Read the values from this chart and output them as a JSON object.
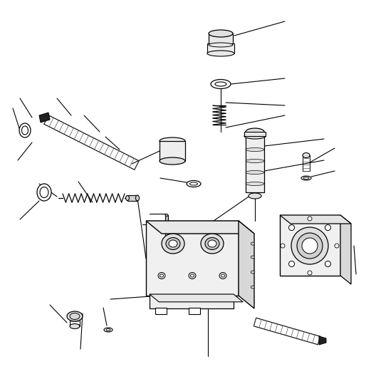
{
  "background_color": "#ffffff",
  "line_color": "#000000",
  "line_width": 0.8,
  "fig_width": 5.21,
  "fig_height": 5.18,
  "dpi": 100
}
